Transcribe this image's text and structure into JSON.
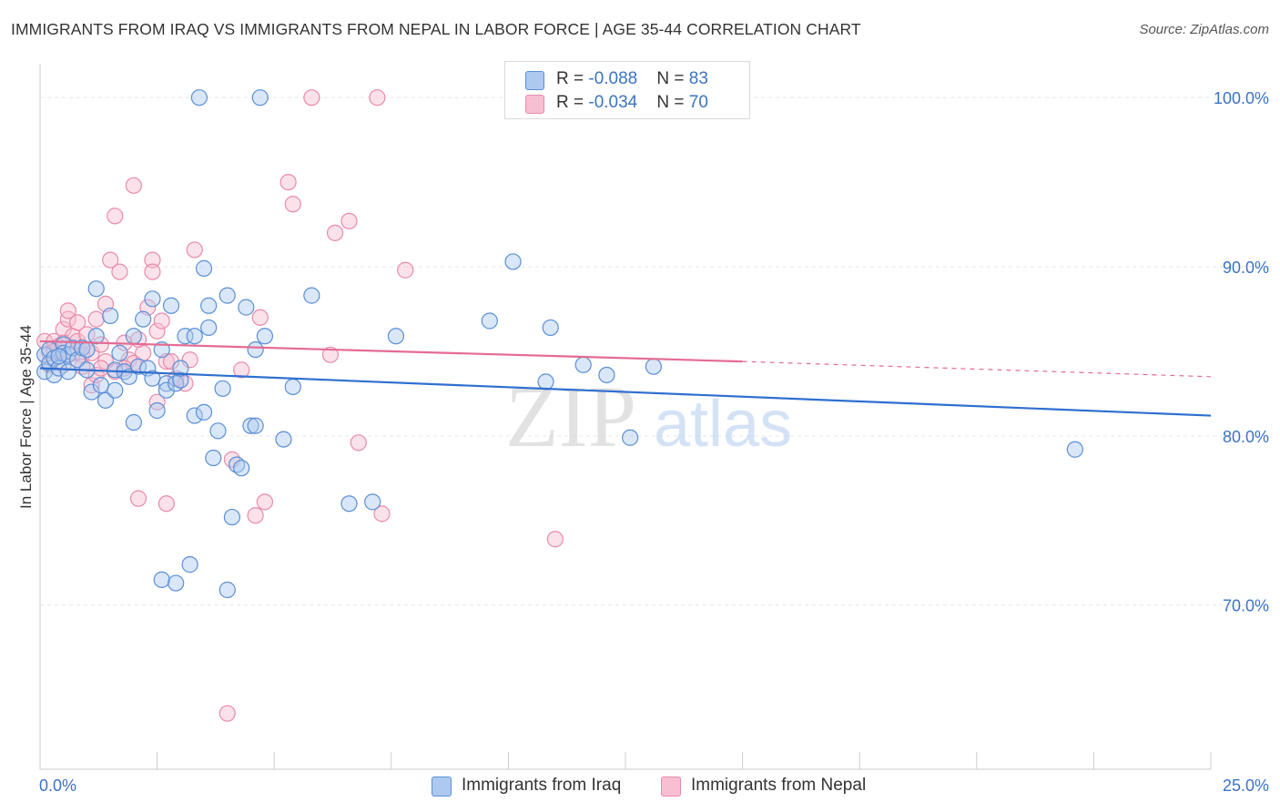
{
  "title": "IMMIGRANTS FROM IRAQ VS IMMIGRANTS FROM NEPAL IN LABOR FORCE | AGE 35-44 CORRELATION CHART",
  "source": "Source: ZipAtlas.com",
  "watermark": {
    "zip": "ZIP",
    "atlas": "atlas"
  },
  "legend": {
    "r_label": "R = ",
    "n_label": "N = ",
    "rows": [
      {
        "r": "-0.088",
        "n": "83"
      },
      {
        "r": "-0.034",
        "n": "70"
      }
    ]
  },
  "colors": {
    "iraq_fill": "#adc9ef",
    "iraq_stroke": "#5a8fd6",
    "iraq_line": "#2f6fcf",
    "nepal_fill": "#f7bfd1",
    "nepal_stroke": "#e98aaa",
    "nepal_line": "#e56b92",
    "tick_text": "#3b73c4",
    "grid": "#e6e6e6"
  },
  "chart_data": {
    "type": "scatter",
    "title": "IMMIGRANTS FROM IRAQ VS IMMIGRANTS FROM NEPAL IN LABOR FORCE | AGE 35-44 CORRELATION CHART",
    "xlabel": "",
    "ylabel": "In Labor Force | Age 35-44",
    "xlim": [
      0,
      25
    ],
    "ylim": [
      60.3,
      102
    ],
    "x_tick_labels": [
      "0.0%",
      "25.0%"
    ],
    "y_ticks": [
      70,
      80,
      90,
      100
    ],
    "y_tick_labels": [
      "70.0%",
      "80.0%",
      "90.0%",
      "100.0%"
    ],
    "grid": true,
    "legend_position": "top-center",
    "series": [
      {
        "name": "Immigrants from Iraq",
        "R": -0.088,
        "N": 83,
        "trend": {
          "x": [
            0,
            25
          ],
          "y": [
            84.0,
            81.2
          ]
        },
        "points": [
          [
            0.1,
            84.8
          ],
          [
            0.1,
            83.8
          ],
          [
            0.2,
            84.3
          ],
          [
            0.2,
            85.1
          ],
          [
            0.3,
            83.6
          ],
          [
            0.3,
            84.6
          ],
          [
            0.4,
            84.0
          ],
          [
            0.5,
            85.4
          ],
          [
            0.5,
            84.9
          ],
          [
            0.6,
            83.8
          ],
          [
            0.6,
            84.8
          ],
          [
            0.7,
            85.2
          ],
          [
            0.8,
            84.5
          ],
          [
            0.9,
            85.2
          ],
          [
            1.0,
            85.1
          ],
          [
            1.0,
            83.9
          ],
          [
            1.1,
            82.6
          ],
          [
            1.2,
            85.9
          ],
          [
            1.2,
            88.7
          ],
          [
            1.3,
            83.0
          ],
          [
            1.4,
            82.1
          ],
          [
            1.5,
            87.1
          ],
          [
            1.6,
            83.9
          ],
          [
            1.6,
            82.7
          ],
          [
            1.7,
            84.9
          ],
          [
            1.8,
            83.8
          ],
          [
            1.9,
            83.5
          ],
          [
            2.0,
            85.9
          ],
          [
            2.0,
            80.8
          ],
          [
            2.1,
            84.1
          ],
          [
            2.2,
            86.9
          ],
          [
            2.3,
            84.0
          ],
          [
            2.4,
            83.4
          ],
          [
            2.4,
            88.1
          ],
          [
            2.5,
            81.5
          ],
          [
            2.6,
            85.1
          ],
          [
            2.6,
            71.5
          ],
          [
            2.7,
            83.1
          ],
          [
            2.7,
            82.7
          ],
          [
            2.8,
            87.7
          ],
          [
            2.9,
            83.1
          ],
          [
            2.9,
            71.3
          ],
          [
            3.0,
            83.3
          ],
          [
            3.0,
            84.0
          ],
          [
            3.1,
            85.9
          ],
          [
            3.2,
            72.4
          ],
          [
            3.3,
            85.9
          ],
          [
            3.3,
            81.2
          ],
          [
            3.4,
            100.0
          ],
          [
            3.5,
            81.4
          ],
          [
            3.5,
            89.9
          ],
          [
            3.6,
            87.7
          ],
          [
            3.6,
            86.4
          ],
          [
            3.7,
            78.7
          ],
          [
            3.8,
            80.3
          ],
          [
            3.9,
            82.8
          ],
          [
            4.0,
            88.3
          ],
          [
            4.0,
            70.9
          ],
          [
            4.1,
            75.2
          ],
          [
            4.2,
            78.3
          ],
          [
            4.3,
            78.1
          ],
          [
            4.4,
            87.6
          ],
          [
            4.5,
            80.6
          ],
          [
            4.6,
            85.1
          ],
          [
            4.6,
            80.6
          ],
          [
            4.7,
            100.0
          ],
          [
            4.8,
            85.9
          ],
          [
            5.2,
            79.8
          ],
          [
            5.4,
            82.9
          ],
          [
            5.8,
            88.3
          ],
          [
            6.6,
            76.0
          ],
          [
            7.1,
            76.1
          ],
          [
            7.6,
            85.9
          ],
          [
            9.6,
            86.8
          ],
          [
            10.1,
            90.3
          ],
          [
            10.8,
            83.2
          ],
          [
            10.9,
            86.4
          ],
          [
            11.6,
            84.2
          ],
          [
            12.1,
            83.6
          ],
          [
            12.6,
            79.9
          ],
          [
            13.1,
            84.1
          ],
          [
            22.1,
            79.2
          ],
          [
            0.4,
            84.7
          ]
        ]
      },
      {
        "name": "Immigrants from Nepal",
        "R": -0.034,
        "N": 70,
        "trend": {
          "x": [
            0,
            15
          ],
          "y": [
            85.6,
            84.4
          ]
        },
        "trend_dashed": {
          "x": [
            15,
            25
          ],
          "y": [
            84.4,
            83.5
          ]
        },
        "points": [
          [
            0.1,
            85.6
          ],
          [
            0.2,
            84.9
          ],
          [
            0.2,
            84.2
          ],
          [
            0.3,
            85.6
          ],
          [
            0.4,
            84.9
          ],
          [
            0.4,
            85.3
          ],
          [
            0.5,
            86.3
          ],
          [
            0.5,
            84.2
          ],
          [
            0.6,
            86.9
          ],
          [
            0.6,
            87.4
          ],
          [
            0.7,
            85.9
          ],
          [
            0.7,
            84.9
          ],
          [
            0.8,
            86.7
          ],
          [
            0.8,
            85.6
          ],
          [
            0.9,
            84.8
          ],
          [
            0.9,
            84.1
          ],
          [
            1.0,
            86.0
          ],
          [
            1.1,
            83.0
          ],
          [
            1.1,
            84.9
          ],
          [
            1.2,
            86.9
          ],
          [
            1.2,
            83.6
          ],
          [
            1.3,
            85.4
          ],
          [
            1.4,
            87.8
          ],
          [
            1.4,
            84.4
          ],
          [
            1.5,
            90.4
          ],
          [
            1.6,
            93.0
          ],
          [
            1.6,
            83.8
          ],
          [
            1.7,
            89.7
          ],
          [
            1.8,
            85.5
          ],
          [
            1.9,
            84.5
          ],
          [
            2.0,
            94.8
          ],
          [
            2.0,
            84.3
          ],
          [
            2.1,
            76.3
          ],
          [
            2.2,
            84.9
          ],
          [
            2.3,
            87.6
          ],
          [
            2.4,
            90.4
          ],
          [
            2.4,
            89.7
          ],
          [
            2.5,
            86.2
          ],
          [
            2.5,
            82.0
          ],
          [
            2.6,
            86.8
          ],
          [
            2.7,
            76.0
          ],
          [
            2.7,
            84.4
          ],
          [
            2.8,
            84.4
          ],
          [
            2.9,
            83.4
          ],
          [
            3.1,
            83.1
          ],
          [
            3.2,
            84.5
          ],
          [
            3.3,
            91.0
          ],
          [
            4.0,
            63.6
          ],
          [
            4.1,
            78.6
          ],
          [
            4.3,
            83.9
          ],
          [
            4.6,
            75.3
          ],
          [
            4.7,
            87.0
          ],
          [
            4.8,
            76.1
          ],
          [
            5.3,
            95.0
          ],
          [
            5.4,
            93.7
          ],
          [
            5.8,
            100.0
          ],
          [
            6.2,
            84.8
          ],
          [
            6.3,
            92.0
          ],
          [
            6.6,
            92.7
          ],
          [
            6.8,
            79.6
          ],
          [
            7.2,
            100.0
          ],
          [
            7.3,
            75.4
          ],
          [
            7.8,
            89.8
          ],
          [
            11.0,
            73.9
          ],
          [
            0.3,
            85.0
          ],
          [
            0.9,
            85.2
          ],
          [
            1.3,
            84.0
          ],
          [
            2.1,
            85.7
          ],
          [
            0.5,
            85.5
          ],
          [
            1.8,
            84.0
          ]
        ]
      }
    ]
  },
  "bottom_legend": [
    "Immigrants from Iraq",
    "Immigrants from Nepal"
  ]
}
